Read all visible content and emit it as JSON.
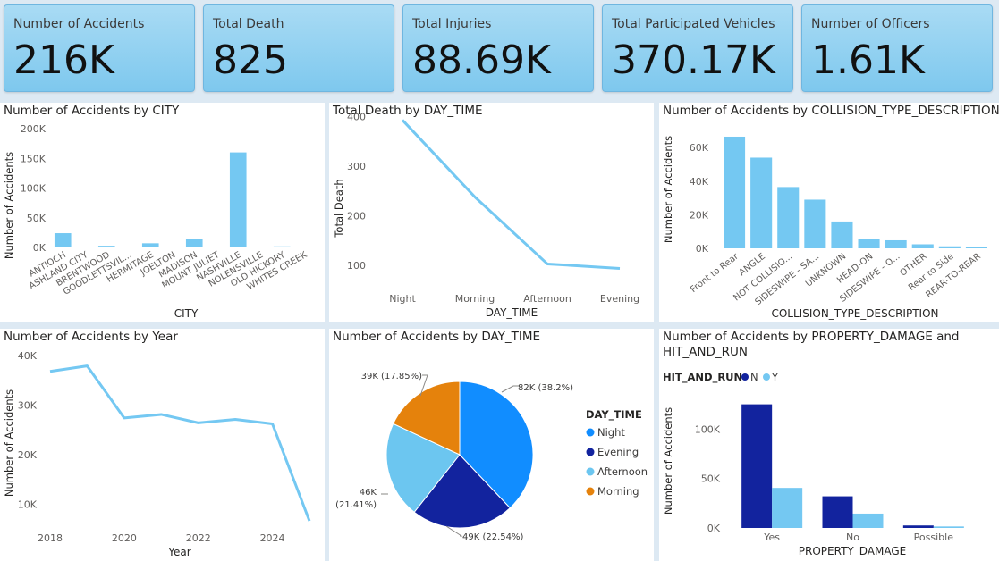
{
  "kpis": [
    {
      "label": "Number of Accidents",
      "value": "216K"
    },
    {
      "label": "Total Death",
      "value": "825"
    },
    {
      "label": "Total Injuries",
      "value": "88.69K"
    },
    {
      "label": "Total Participated Vehicles",
      "value": "370.17K"
    },
    {
      "label": "Number of Officers",
      "value": "1.61K"
    }
  ],
  "colors": {
    "bar": "#74c8f2",
    "line": "#74c8f2",
    "night": "#118dff",
    "evening": "#12239e",
    "afternoon": "#6cc6f0",
    "morning": "#e5820c"
  },
  "chart_data": [
    {
      "type": "bar",
      "title": "Number of Accidents by CITY",
      "xlabel": "CITY",
      "ylabel": "Number of Accidents",
      "categories": [
        "ANTIOCH",
        "ASHLAND CITY",
        "BRENTWOOD",
        "GOODLETTSVIL...",
        "HERMITAGE",
        "JOELTON",
        "MADISON",
        "MOUNT JULIET",
        "NASHVILLE",
        "NOLENSVILLE",
        "OLD HICKORY",
        "WHITES CREEK"
      ],
      "values": [
        24000,
        600,
        2800,
        1500,
        7000,
        1200,
        14500,
        1000,
        160000,
        800,
        1800,
        1500
      ],
      "ylim": [
        0,
        200000
      ],
      "yticks": [
        {
          "v": 0,
          "label": "0K"
        },
        {
          "v": 50000,
          "label": "50K"
        },
        {
          "v": 100000,
          "label": "100K"
        },
        {
          "v": 150000,
          "label": "150K"
        },
        {
          "v": 200000,
          "label": "200K"
        }
      ]
    },
    {
      "type": "line",
      "title": "Total Death by DAY_TIME",
      "xlabel": "DAY_TIME",
      "ylabel": "Total Death",
      "categories": [
        "Night",
        "Morning",
        "Afternoon",
        "Evening"
      ],
      "values": [
        393,
        238,
        103,
        94
      ],
      "ylim": [
        75,
        410
      ],
      "yticks": [
        {
          "v": 100,
          "label": "100"
        },
        {
          "v": 200,
          "label": "200"
        },
        {
          "v": 300,
          "label": "300"
        },
        {
          "v": 400,
          "label": "400"
        }
      ]
    },
    {
      "type": "bar",
      "title": "Number of Accidents by COLLISION_TYPE_DESCRIPTION",
      "xlabel": "COLLISION_TYPE_DESCRIPTION",
      "ylabel": "Number of Accidents",
      "categories": [
        "Front to Rear",
        "ANGLE",
        "NOT COLLISIO...",
        "SIDESWIPE - SA...",
        "UNKNOWN",
        "HEAD-ON",
        "SIDESWIPE - O...",
        "OTHER",
        "Rear to Side",
        "REAR-TO-REAR"
      ],
      "values": [
        66500,
        54000,
        36500,
        29000,
        16000,
        5500,
        4800,
        2400,
        1200,
        800
      ],
      "ylim": [
        0,
        75000
      ],
      "yticks": [
        {
          "v": 0,
          "label": "0K"
        },
        {
          "v": 20000,
          "label": "20K"
        },
        {
          "v": 40000,
          "label": "40K"
        },
        {
          "v": 60000,
          "label": "60K"
        }
      ]
    },
    {
      "type": "line",
      "title": "Number of Accidents by Year",
      "xlabel": "Year",
      "ylabel": "Number of Accidents",
      "x": [
        2018,
        2019,
        2020,
        2021,
        2022,
        2023,
        2024,
        2025
      ],
      "values": [
        36800,
        37900,
        27400,
        28100,
        26400,
        27100,
        26200,
        6600
      ],
      "xlim": [
        2018,
        2025
      ],
      "ylim": [
        5000,
        40000
      ],
      "xticks": [
        2018,
        2020,
        2022,
        2024
      ],
      "yticks": [
        {
          "v": 10000,
          "label": "10K"
        },
        {
          "v": 20000,
          "label": "20K"
        },
        {
          "v": 30000,
          "label": "30K"
        },
        {
          "v": 40000,
          "label": "40K"
        }
      ]
    },
    {
      "type": "pie",
      "title": "Number of Accidents by DAY_TIME",
      "legend_title": "DAY_TIME",
      "slices": [
        {
          "name": "Night",
          "value": 82,
          "label": "82K (38.2%)"
        },
        {
          "name": "Evening",
          "value": 49,
          "label": "49K (22.54%)"
        },
        {
          "name": "Afternoon",
          "value": 46,
          "label_line1": "46K",
          "label_line2": "(21.41%)"
        },
        {
          "name": "Morning",
          "value": 39,
          "label": "39K (17.85%)"
        }
      ]
    },
    {
      "type": "bar",
      "title_line1": "Number of Accidents by PROPERTY_DAMAGE and",
      "title_line2": "HIT_AND_RUN",
      "legend_title": "HIT_AND_RUN",
      "xlabel": "PROPERTY_DAMAGE",
      "ylabel": "Number of Accidents",
      "categories": [
        "Yes",
        "No",
        "Possible"
      ],
      "series": [
        {
          "name": "N",
          "values": [
            125000,
            32000,
            2500
          ]
        },
        {
          "name": "Y",
          "values": [
            40500,
            14500,
            1500
          ]
        }
      ],
      "ylim": [
        0,
        140000
      ],
      "yticks": [
        {
          "v": 0,
          "label": "0K"
        },
        {
          "v": 50000,
          "label": "50K"
        },
        {
          "v": 100000,
          "label": "100K"
        }
      ]
    }
  ]
}
